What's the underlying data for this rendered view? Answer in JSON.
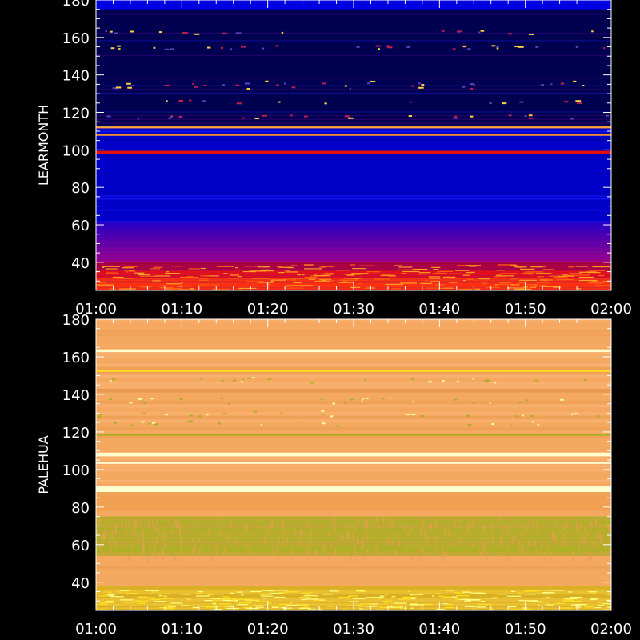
{
  "chart_data": [
    {
      "type": "heatmap",
      "ylabel": "LEARMONTH",
      "x_ticks": [
        "01:00",
        "01:10",
        "01:20",
        "01:30",
        "01:40",
        "01:50",
        "02:00"
      ],
      "xlim": [
        "01:00",
        "02:00"
      ],
      "y_ticks": [
        40,
        60,
        80,
        100,
        120,
        140,
        160,
        180
      ],
      "ylim": [
        25,
        180
      ],
      "colors": {
        "background": "#0000c8",
        "low_band": "#e01010",
        "hot": "#ffd040",
        "dark": "#000050"
      },
      "features": [
        {
          "from": 25,
          "to": 40,
          "kind": "noise-hot"
        },
        {
          "from": 40,
          "to": 60,
          "kind": "gradient-purple"
        },
        {
          "from": 98,
          "to": 99.5,
          "kind": "line-red"
        },
        {
          "from": 107.5,
          "to": 108.5,
          "kind": "line-orange"
        },
        {
          "from": 111.5,
          "to": 112.5,
          "kind": "line-orange"
        },
        {
          "from": 112,
          "to": 180,
          "kind": "dark-band"
        }
      ]
    },
    {
      "type": "heatmap",
      "ylabel": "PALEHUA",
      "x_ticks": [
        "01:00",
        "01:10",
        "01:20",
        "01:30",
        "01:40",
        "01:50",
        "02:00"
      ],
      "xlim": [
        "01:00",
        "02:00"
      ],
      "y_ticks": [
        40,
        60,
        80,
        100,
        120,
        140,
        160,
        180
      ],
      "ylim": [
        25,
        180
      ],
      "colors": {
        "background": "#f5a860",
        "green": "#a8b020",
        "bright": "#ffffd0",
        "yellow": "#ffe020"
      },
      "features": [
        {
          "from": 25,
          "to": 37,
          "kind": "noise-yellow"
        },
        {
          "from": 54,
          "to": 75,
          "kind": "band-green"
        },
        {
          "from": 88,
          "to": 91,
          "kind": "line-bright"
        },
        {
          "from": 103,
          "to": 104,
          "kind": "line-bright"
        },
        {
          "from": 107,
          "to": 109,
          "kind": "line-bright"
        },
        {
          "from": 118,
          "to": 119,
          "kind": "line-green"
        },
        {
          "from": 152,
          "to": 153,
          "kind": "line-yellow"
        },
        {
          "from": 162.5,
          "to": 164,
          "kind": "line-bright"
        }
      ]
    }
  ]
}
